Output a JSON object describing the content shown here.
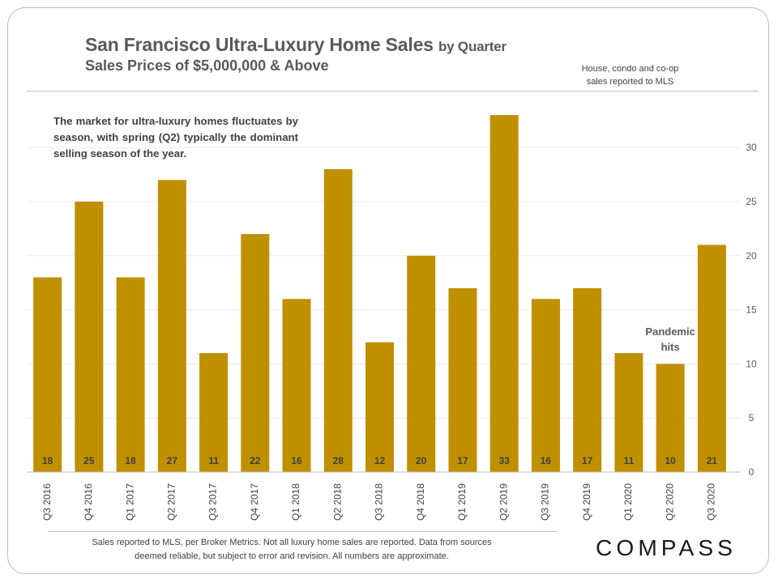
{
  "title": {
    "main": "San Francisco Ultra-Luxury Home Sales",
    "suffix": "by Quarter",
    "subtitle": "Sales Prices of $5,000,000 & Above"
  },
  "source_note": {
    "line1": "House, condo and co-op",
    "line2": "sales reported to MLS"
  },
  "annotation": "The market for ultra-luxury homes fluctuates by season, with spring (Q2) typically the dominant selling season of the year.",
  "pandemic_note": {
    "line1": "Pandemic",
    "line2": "hits"
  },
  "footnote": {
    "line1": "Sales reported to MLS, per Broker Metrics.  Not all  luxury home sales are reported. Data from sources",
    "line2": "deemed reliable, but subject to error and revision. All numbers are approximate."
  },
  "logo": {
    "text": "COMPASS"
  },
  "colors": {
    "bar": "#bf9000",
    "text": "#595959",
    "grid": "#ececec"
  },
  "chart_data": {
    "type": "bar",
    "categories": [
      "Q3 2016",
      "Q4 2016",
      "Q1 2017",
      "Q2 2017",
      "Q3 2017",
      "Q4 2017",
      "Q1 2018",
      "Q2 2018",
      "Q3 2018",
      "Q4 2018",
      "Q1 2019",
      "Q2 2019",
      "Q3 2019",
      "Q4 2019",
      "Q1 2020",
      "Q2 2020",
      "Q3 2020"
    ],
    "values": [
      18,
      25,
      18,
      27,
      11,
      22,
      16,
      28,
      12,
      20,
      17,
      33,
      16,
      17,
      11,
      10,
      21
    ],
    "title": "San Francisco Ultra-Luxury Home Sales by Quarter",
    "xlabel": "",
    "ylabel": "",
    "ylim": [
      0,
      33
    ],
    "yticks": [
      0,
      5,
      10,
      15,
      20,
      25,
      30
    ],
    "y_axis_side": "right",
    "grid": true,
    "data_labels": "inside-bottom"
  }
}
